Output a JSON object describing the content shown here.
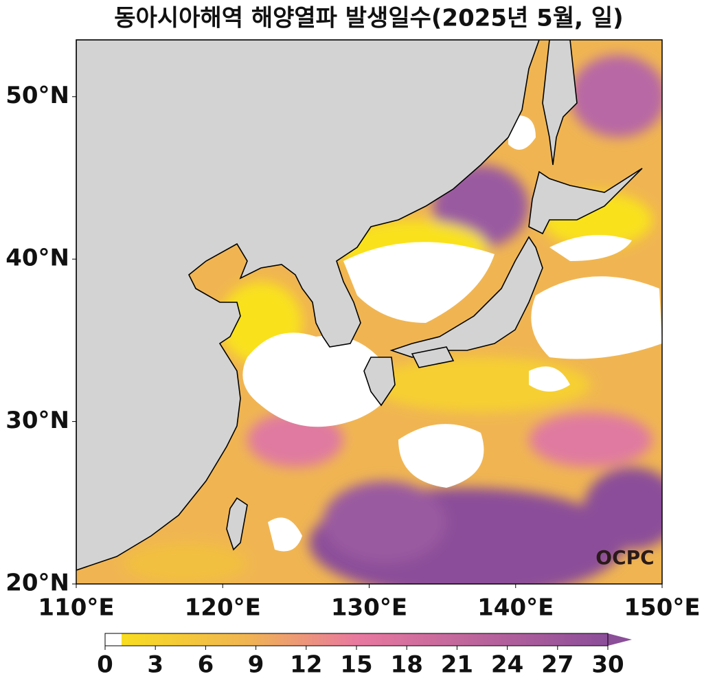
{
  "title": "동아시아해역 해양열파 발생일수(2025년 5월, 일)",
  "map": {
    "xlim": [
      110,
      150
    ],
    "ylim": [
      20,
      53.5
    ],
    "xticks": [
      {
        "value": 110,
        "label": "110°E"
      },
      {
        "value": 120,
        "label": "120°E"
      },
      {
        "value": 130,
        "label": "130°E"
      },
      {
        "value": 140,
        "label": "140°E"
      },
      {
        "value": 150,
        "label": "150°E"
      }
    ],
    "yticks": [
      {
        "value": 20,
        "label": "20°N"
      },
      {
        "value": 30,
        "label": "30°N"
      },
      {
        "value": 40,
        "label": "40°N"
      },
      {
        "value": 50,
        "label": "50°N"
      }
    ]
  },
  "colorbar": {
    "lim": [
      0,
      30
    ],
    "ticks": [
      0,
      3,
      6,
      9,
      12,
      15,
      18,
      21,
      24,
      27,
      30
    ]
  },
  "watermark": "OCPC"
}
